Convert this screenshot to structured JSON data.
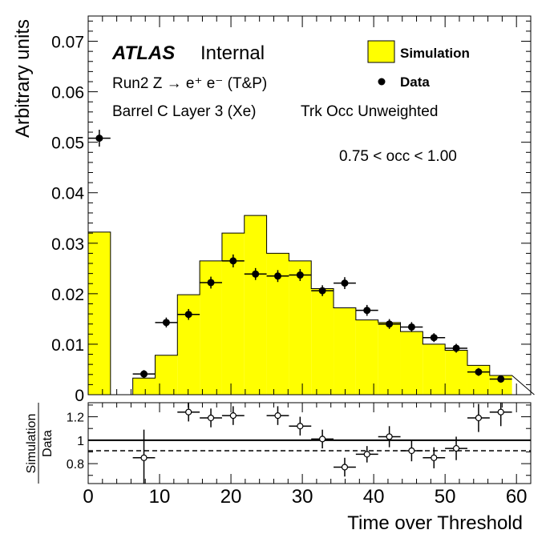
{
  "chart_data": [
    {
      "type": "bar",
      "panel": "main",
      "ylabel": "Arbitrary units",
      "xlim": [
        0,
        62
      ],
      "ylim": [
        0,
        0.075
      ],
      "y_ticks": [
        0,
        0.01,
        0.02,
        0.03,
        0.04,
        0.05,
        0.06,
        0.07
      ],
      "y_tick_labels": [
        "0",
        "0.01",
        "0.02",
        "0.03",
        "0.04",
        "0.05",
        "0.06",
        "0.07"
      ],
      "annotations": {
        "atlas": "ATLAS",
        "internal": "Internal",
        "line1": "Run2 Z → e⁺ e⁻ (T&P)",
        "line2": "Barrel C Layer 3 (Xe)",
        "line3": "Trk Occ Unweighted",
        "cut": "0.75 < occ < 1.00"
      },
      "legend": {
        "placement": "top-right",
        "entries": [
          {
            "label": "Simulation",
            "style": "filled-box",
            "color": "#ffff00"
          },
          {
            "label": "Data",
            "style": "marker",
            "color": "#000000"
          }
        ]
      },
      "bin_width": 3.125,
      "simulation": {
        "name": "Simulation",
        "color": "#ffff00",
        "bin_edges": [
          0,
          3.125,
          6.25,
          9.375,
          12.5,
          15.625,
          18.75,
          21.875,
          25,
          28.125,
          31.25,
          34.375,
          37.5,
          40.625,
          43.75,
          46.875,
          50,
          53.125,
          56.25,
          59.375
        ],
        "values": [
          0.0322,
          0.0,
          0.0033,
          0.0078,
          0.0198,
          0.0265,
          0.032,
          0.0355,
          0.028,
          0.0265,
          0.021,
          0.0172,
          0.0148,
          0.0143,
          0.0125,
          0.01,
          0.0088,
          0.0058,
          0.0038
        ]
      },
      "data": {
        "name": "Data",
        "x": [
          1.56,
          7.81,
          10.94,
          14.06,
          17.19,
          20.31,
          23.44,
          26.56,
          29.69,
          32.81,
          35.94,
          39.06,
          42.19,
          45.31,
          48.44,
          51.56,
          54.69,
          57.81
        ],
        "y": [
          0.0508,
          0.0041,
          0.0143,
          0.0159,
          0.0222,
          0.0265,
          0.0239,
          0.0235,
          0.0237,
          0.0206,
          0.0221,
          0.0167,
          0.014,
          0.0134,
          0.0113,
          0.0092,
          0.0045,
          0.0031
        ],
        "yerr": [
          0.0012,
          0.0003,
          0.0005,
          0.0006,
          0.0007,
          0.0008,
          0.0007,
          0.0007,
          0.0007,
          0.0006,
          0.0007,
          0.0006,
          0.0005,
          0.0005,
          0.0004,
          0.0004,
          0.0003,
          0.0002
        ]
      }
    },
    {
      "type": "scatter",
      "panel": "ratio",
      "xlabel": "Time over Threshold",
      "ylabel_top": "Simulation",
      "ylabel_bottom": "Data",
      "xlim": [
        0,
        62
      ],
      "ylim": [
        0.63,
        1.32
      ],
      "x_ticks": [
        0,
        10,
        20,
        30,
        40,
        50,
        60
      ],
      "x_tick_labels": [
        "0",
        "10",
        "20",
        "30",
        "40",
        "50",
        "60"
      ],
      "y_ticks": [
        0.8,
        1.0,
        1.2
      ],
      "y_tick_labels": [
        "0.8",
        "1",
        "1.2"
      ],
      "reference_line": 1.0,
      "dashed_line": 0.91,
      "x": [
        7.81,
        14.06,
        17.19,
        20.31,
        26.56,
        29.69,
        32.81,
        35.94,
        39.06,
        42.19,
        45.31,
        48.44,
        51.56,
        54.69,
        57.81
      ],
      "y": [
        0.85,
        1.24,
        1.19,
        1.21,
        1.21,
        1.12,
        1.01,
        0.77,
        0.88,
        1.03,
        0.91,
        0.85,
        0.93,
        1.19,
        1.24
      ],
      "yerr": [
        0.24,
        0.08,
        0.08,
        0.08,
        0.08,
        0.08,
        0.08,
        0.08,
        0.07,
        0.09,
        0.09,
        0.09,
        0.1,
        0.12,
        0.12
      ]
    }
  ]
}
